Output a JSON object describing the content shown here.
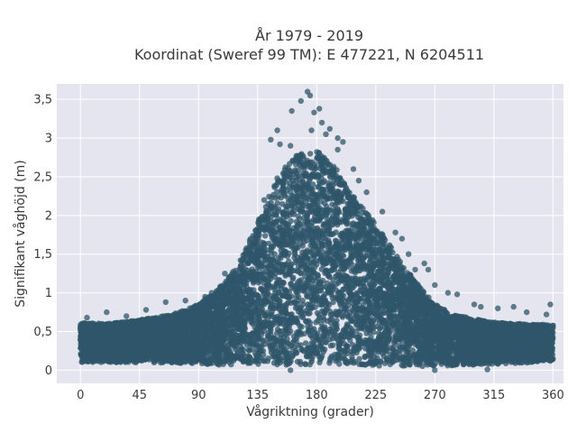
{
  "chart_data": {
    "type": "scatter",
    "title_line1": "År 1979 - 2019",
    "title_line2": "Koordinat (Sweref 99 TM): E 477221, N 6204511",
    "xlabel": "Vågriktning (grader)",
    "ylabel": "Signifikant våghöjd (m)",
    "xlim": [
      -18,
      368
    ],
    "ylim": [
      -0.17,
      3.7
    ],
    "xticks": [
      0,
      45,
      90,
      135,
      180,
      225,
      270,
      315,
      360
    ],
    "xtick_labels": [
      "0",
      "45",
      "90",
      "135",
      "180",
      "225",
      "270",
      "315",
      "360"
    ],
    "yticks": [
      0,
      0.5,
      1,
      1.5,
      2,
      2.5,
      3,
      3.5
    ],
    "ytick_labels": [
      "0",
      "0,5",
      "1",
      "1,5",
      "2",
      "2,5",
      "3",
      "3,5"
    ],
    "grid": true,
    "marker_color": "#2f5569",
    "background_color": "#e5e5ef",
    "envelope": {
      "x": [
        0,
        20,
        45,
        70,
        90,
        105,
        120,
        135,
        150,
        165,
        180,
        195,
        210,
        225,
        240,
        255,
        270,
        285,
        300,
        315,
        330,
        345,
        360
      ],
      "y_upper": [
        0.62,
        0.6,
        0.65,
        0.72,
        0.85,
        1.05,
        1.35,
        1.9,
        2.5,
        2.8,
        2.85,
        2.6,
        2.2,
        1.9,
        1.5,
        1.15,
        0.85,
        0.72,
        0.66,
        0.62,
        0.6,
        0.6,
        0.58
      ],
      "y_lower": [
        0.1,
        0.1,
        0.1,
        0.09,
        0.08,
        0.07,
        0.07,
        0.07,
        0.07,
        0.07,
        0.07,
        0.07,
        0.07,
        0.06,
        0.05,
        0.05,
        0.05,
        0.06,
        0.07,
        0.08,
        0.09,
        0.1,
        0.1
      ]
    },
    "outliers": [
      {
        "x": 173,
        "y": 3.6
      },
      {
        "x": 175,
        "y": 3.55
      },
      {
        "x": 168,
        "y": 3.48
      },
      {
        "x": 161,
        "y": 3.35
      },
      {
        "x": 178,
        "y": 3.33
      },
      {
        "x": 182,
        "y": 3.38
      },
      {
        "x": 190,
        "y": 3.12
      },
      {
        "x": 187,
        "y": 3.05
      },
      {
        "x": 196,
        "y": 3.0
      },
      {
        "x": 200,
        "y": 2.95
      },
      {
        "x": 145,
        "y": 2.98
      },
      {
        "x": 150,
        "y": 3.1
      },
      {
        "x": 152,
        "y": 2.92
      },
      {
        "x": 208,
        "y": 2.6
      },
      {
        "x": 212,
        "y": 2.45
      },
      {
        "x": 218,
        "y": 2.3
      },
      {
        "x": 160,
        "y": 2.9
      },
      {
        "x": 176,
        "y": 3.1
      },
      {
        "x": 184,
        "y": 3.2
      },
      {
        "x": 196,
        "y": 2.85
      },
      {
        "x": 110,
        "y": 1.25
      },
      {
        "x": 115,
        "y": 1.2
      },
      {
        "x": 100,
        "y": 1.0
      },
      {
        "x": 95,
        "y": 0.95
      },
      {
        "x": 255,
        "y": 1.3
      },
      {
        "x": 262,
        "y": 1.38
      },
      {
        "x": 265,
        "y": 1.3
      },
      {
        "x": 270,
        "y": 1.1
      },
      {
        "x": 280,
        "y": 1.0
      },
      {
        "x": 287,
        "y": 0.98
      },
      {
        "x": 300,
        "y": 0.85
      },
      {
        "x": 318,
        "y": 0.8
      },
      {
        "x": 330,
        "y": 0.82
      },
      {
        "x": 358,
        "y": 0.85
      },
      {
        "x": 50,
        "y": 0.78
      },
      {
        "x": 20,
        "y": 0.75
      },
      {
        "x": 65,
        "y": 0.88
      },
      {
        "x": 80,
        "y": 0.9
      },
      {
        "x": 230,
        "y": 2.05
      },
      {
        "x": 240,
        "y": 1.78
      },
      {
        "x": 245,
        "y": 1.7
      },
      {
        "x": 136,
        "y": 1.95
      },
      {
        "x": 140,
        "y": 2.2
      },
      {
        "x": 250,
        "y": 1.5
      },
      {
        "x": 355,
        "y": 0.72
      },
      {
        "x": 5,
        "y": 0.68
      },
      {
        "x": 35,
        "y": 0.7
      },
      {
        "x": 340,
        "y": 0.75
      },
      {
        "x": 305,
        "y": 0.82
      },
      {
        "x": 160,
        "y": 0.0
      },
      {
        "x": 270,
        "y": 0.0
      },
      {
        "x": 310,
        "y": 0.01
      }
    ]
  }
}
